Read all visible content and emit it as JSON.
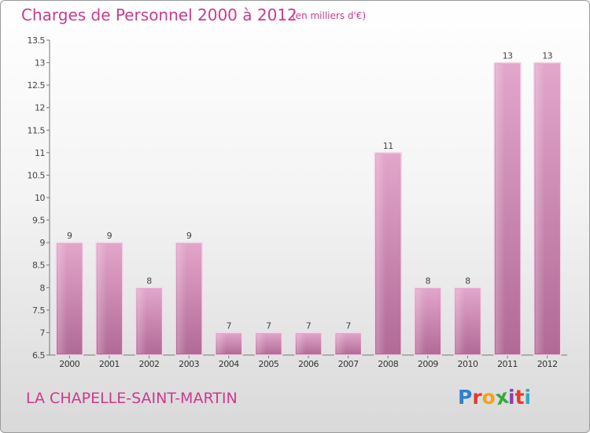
{
  "header": {
    "title": "Charges de Personnel 2000 à 2012",
    "unit_note": "(en milliers d'€)"
  },
  "footer": {
    "town": "LA CHAPELLE-SAINT-MARTIN",
    "logo_letters": [
      "P",
      "r",
      "o",
      "x",
      "i",
      "t",
      "i"
    ],
    "logo_colors": [
      "#2f7fd1",
      "#e8392e",
      "#f2a21f",
      "#3aa83a",
      "#8b3fb4",
      "#e8392e",
      "#2fa9c8"
    ]
  },
  "chart_data": {
    "type": "bar",
    "categories": [
      "2000",
      "2001",
      "2002",
      "2003",
      "2004",
      "2005",
      "2006",
      "2007",
      "2008",
      "2009",
      "2010",
      "2011",
      "2012"
    ],
    "values": [
      9,
      9,
      8,
      9,
      7,
      7,
      7,
      7,
      11,
      8,
      8,
      13,
      13
    ],
    "value_labels": [
      "9",
      "9",
      "8",
      "9",
      "7",
      "7",
      "7",
      "7",
      "11",
      "8",
      "8",
      "13",
      "13"
    ],
    "ylim": [
      6.5,
      13.5
    ],
    "yticks": [
      6.5,
      7,
      7.5,
      8,
      8.5,
      9,
      9.5,
      10,
      10.5,
      11,
      11.5,
      12,
      12.5,
      13,
      13.5
    ],
    "ytick_labels": [
      "6.5",
      "7",
      "7.5",
      "8",
      "8.5",
      "9",
      "9.5",
      "10",
      "10.5",
      "11",
      "11.5",
      "12",
      "12.5",
      "13",
      "13.5"
    ],
    "bar_color": "#d88bb6",
    "grid": false
  }
}
